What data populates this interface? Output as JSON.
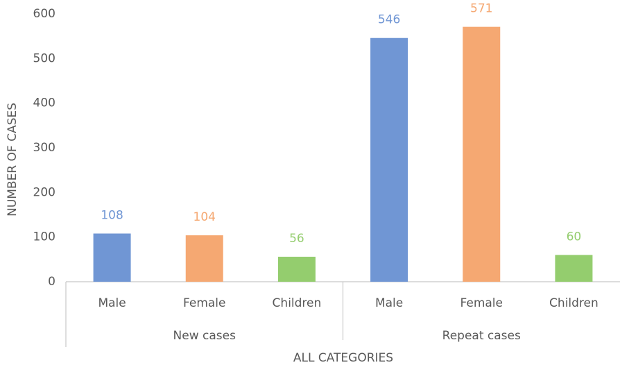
{
  "chart_data": {
    "type": "bar",
    "x_label": "ALL CATEGORIES",
    "y_label": "NUMBER OF CASES",
    "colors": [
      "#7096d4",
      "#f5a872",
      "#94cd6e"
    ],
    "groups": [
      {
        "name": "New cases",
        "categories": [
          "Male",
          "Female",
          "Children"
        ],
        "values": [
          108,
          104,
          56
        ]
      },
      {
        "name": "Repeat cases",
        "categories": [
          "Male",
          "Female",
          "Children"
        ],
        "values": [
          546,
          571,
          60
        ]
      }
    ],
    "ylim": [
      0,
      600
    ],
    "yticks": [
      0,
      100,
      200,
      300,
      400,
      500,
      600
    ],
    "grid": false
  }
}
